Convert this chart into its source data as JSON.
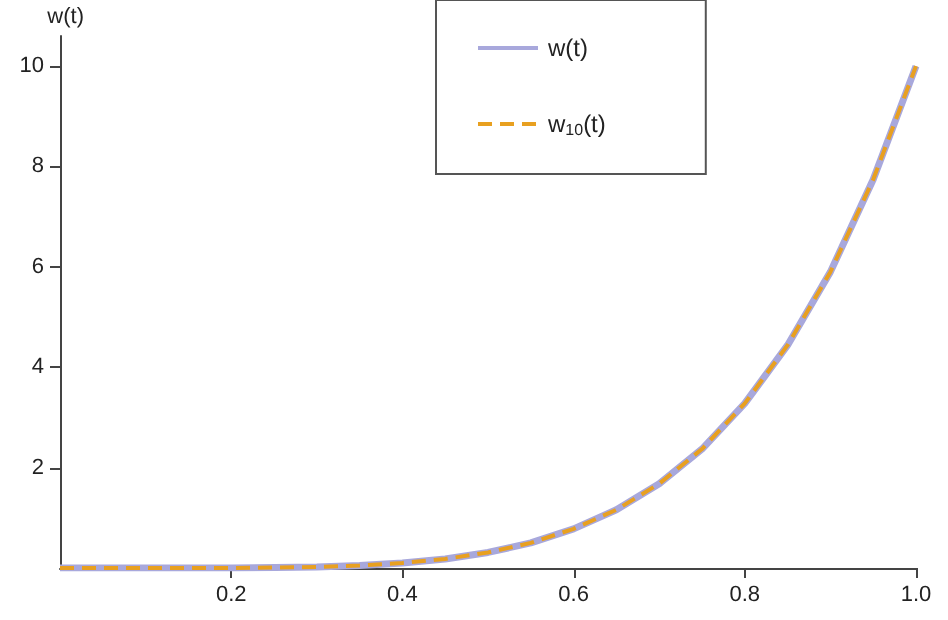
{
  "chart_data": {
    "type": "line",
    "ylabel": "w(t)",
    "x": [
      0,
      0.1,
      0.2,
      0.3,
      0.35,
      0.4,
      0.45,
      0.5,
      0.55,
      0.6,
      0.65,
      0.7,
      0.75,
      0.8,
      0.85,
      0.9,
      0.95,
      1.0
    ],
    "series": [
      {
        "name": "w(t)",
        "color": "#a8a8dc",
        "line_style": "solid",
        "values": [
          0,
          0,
          0,
          0.02,
          0.05,
          0.1,
          0.18,
          0.31,
          0.5,
          0.78,
          1.16,
          1.68,
          2.37,
          3.28,
          4.44,
          5.9,
          7.74,
          10
        ]
      },
      {
        "name": "w$_{10}$(t)",
        "color": "#e8a020",
        "line_style": "dashed",
        "values": [
          0,
          0,
          0,
          0.02,
          0.05,
          0.1,
          0.18,
          0.31,
          0.5,
          0.78,
          1.16,
          1.68,
          2.37,
          3.28,
          4.44,
          5.9,
          7.74,
          10
        ]
      }
    ],
    "xlim": [
      0,
      1
    ],
    "xticks": [
      0.2,
      0.4,
      0.6,
      0.8,
      {
        "value": 1,
        "label": "1.0"
      }
    ],
    "ylim": [
      0,
      10.6
    ],
    "yticks": [
      2,
      4,
      6,
      8,
      10
    ],
    "grid": false,
    "legend": "top",
    "marker": "none"
  }
}
